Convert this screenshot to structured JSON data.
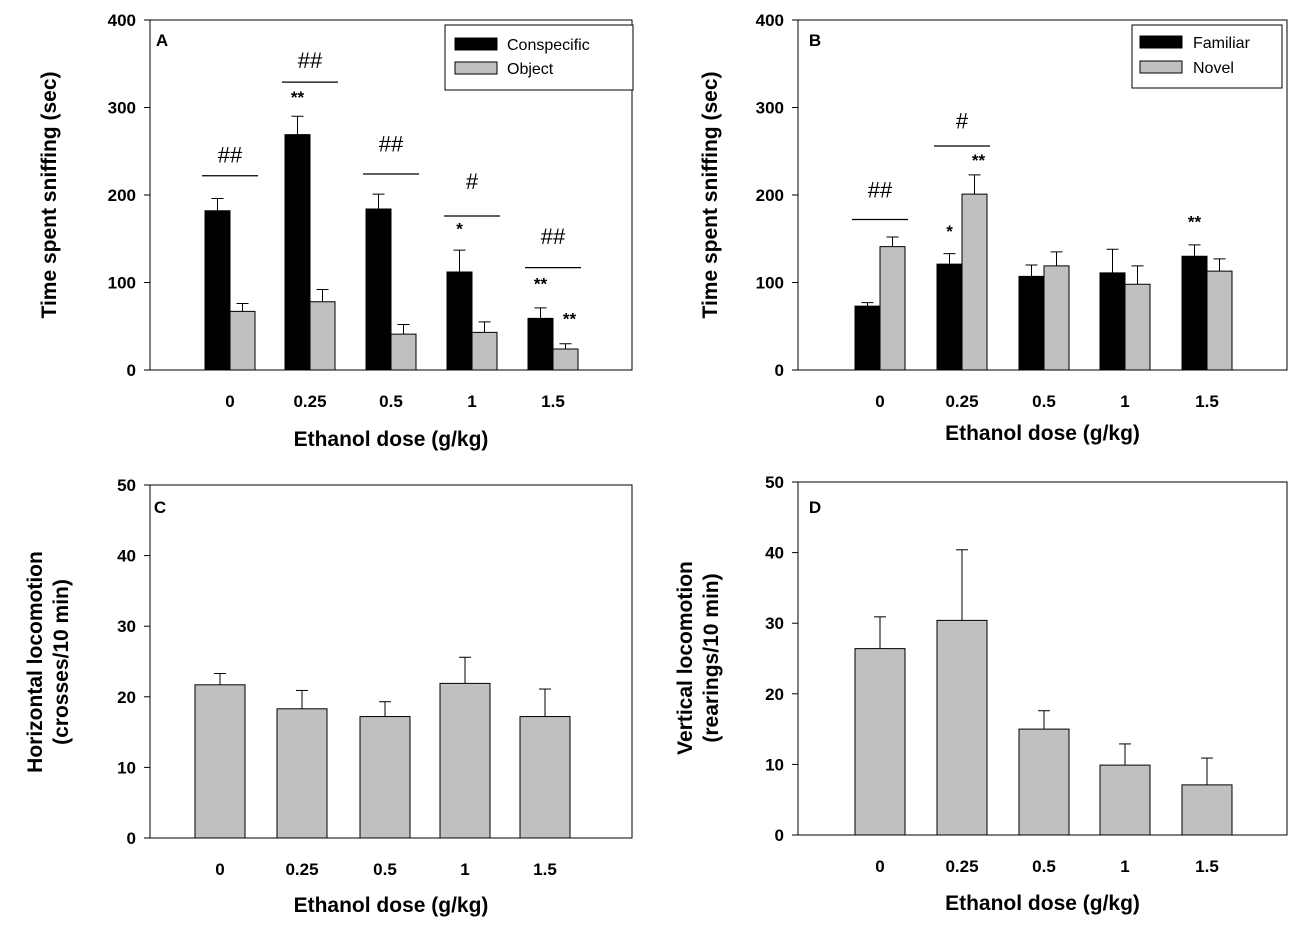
{
  "colors": {
    "dark": "#000000",
    "light": "#c0c0c0"
  },
  "chart_data": [
    {
      "panel": "A",
      "type": "bar",
      "categories": [
        "0",
        "0.25",
        "0.5",
        "1",
        "1.5"
      ],
      "xlabel": "Ethanol dose (g/kg)",
      "ylabel": "Time spent sniffing (sec)",
      "ylim": [
        0,
        400
      ],
      "yticks": [
        "0",
        "100",
        "200",
        "300",
        "400"
      ],
      "legend": "top-right",
      "series": [
        {
          "name": "Conspecific",
          "color": "#000000",
          "values": [
            182,
            269,
            184,
            112,
            59
          ],
          "errors": [
            14,
            21,
            17,
            25,
            12
          ]
        },
        {
          "name": "Object",
          "color": "#c0c0c0",
          "values": [
            67,
            78,
            41,
            43,
            24
          ],
          "errors": [
            9,
            14,
            11,
            12,
            6
          ]
        }
      ],
      "annotations": [
        {
          "text": "##",
          "category": 0,
          "y": 237,
          "line_y": 222
        },
        {
          "text": "##",
          "category": 1,
          "y": 345,
          "line_y": 329
        },
        {
          "text": "**",
          "category": 1,
          "series": 0,
          "y": 305
        },
        {
          "text": "##",
          "category": 2,
          "y": 250,
          "line_y": 224
        },
        {
          "text": "#",
          "category": 3,
          "y": 207,
          "line_y": 176
        },
        {
          "text": "*",
          "category": 3,
          "series": 0,
          "y": 155
        },
        {
          "text": "##",
          "category": 4,
          "y": 144,
          "line_y": 117
        },
        {
          "text": "**",
          "category": 4,
          "series": 0,
          "y": 92
        },
        {
          "text": "**",
          "category": 4,
          "series": 1,
          "y": 52
        }
      ]
    },
    {
      "panel": "B",
      "type": "bar",
      "categories": [
        "0",
        "0.25",
        "0.5",
        "1",
        "1.5"
      ],
      "xlabel": "Ethanol dose (g/kg)",
      "ylabel": "Time spent sniffing (sec)",
      "ylim": [
        0,
        400
      ],
      "yticks": [
        "0",
        "100",
        "200",
        "300",
        "400"
      ],
      "legend": "top-right",
      "series": [
        {
          "name": "Familiar",
          "color": "#000000",
          "values": [
            73,
            121,
            107,
            111,
            130
          ],
          "errors": [
            4,
            12,
            13,
            27,
            13
          ]
        },
        {
          "name": "Novel",
          "color": "#c0c0c0",
          "values": [
            141,
            201,
            119,
            98,
            113
          ],
          "errors": [
            11,
            22,
            16,
            21,
            14
          ]
        }
      ],
      "annotations": [
        {
          "text": "##",
          "category": 0,
          "y": 197,
          "line_y": 172
        },
        {
          "text": "#",
          "category": 1,
          "y": 276,
          "line_y": 256
        },
        {
          "text": "**",
          "category": 1,
          "series": 1,
          "y": 233
        },
        {
          "text": "*",
          "category": 1,
          "series": 0,
          "y": 152
        },
        {
          "text": "**",
          "category": 4,
          "series": 0,
          "y": 163
        }
      ]
    },
    {
      "panel": "C",
      "type": "bar",
      "categories": [
        "0",
        "0.25",
        "0.5",
        "1",
        "1.5"
      ],
      "xlabel": "Ethanol dose (g/kg)",
      "ylabel_lines": [
        "Horizontal locomotion",
        "(crosses/10 min)"
      ],
      "ylim": [
        0,
        50
      ],
      "yticks": [
        "0",
        "10",
        "20",
        "30",
        "40",
        "50"
      ],
      "series": [
        {
          "name": "Horizontal locomotion",
          "color": "#c0c0c0",
          "values": [
            21.7,
            18.3,
            17.2,
            21.9,
            17.2
          ],
          "errors": [
            1.6,
            2.6,
            2.1,
            3.7,
            3.9
          ]
        }
      ]
    },
    {
      "panel": "D",
      "type": "bar",
      "categories": [
        "0",
        "0.25",
        "0.5",
        "1",
        "1.5"
      ],
      "xlabel": "Ethanol dose (g/kg)",
      "ylabel_lines": [
        "Vertical locomotion",
        "(rearings/10 min)"
      ],
      "ylim": [
        0,
        50
      ],
      "yticks": [
        "0",
        "10",
        "20",
        "30",
        "40",
        "50"
      ],
      "series": [
        {
          "name": "Vertical locomotion",
          "color": "#c0c0c0",
          "values": [
            26.4,
            30.4,
            15.0,
            9.9,
            7.1
          ],
          "errors": [
            4.5,
            10.0,
            2.6,
            3.0,
            3.8
          ]
        }
      ]
    }
  ]
}
